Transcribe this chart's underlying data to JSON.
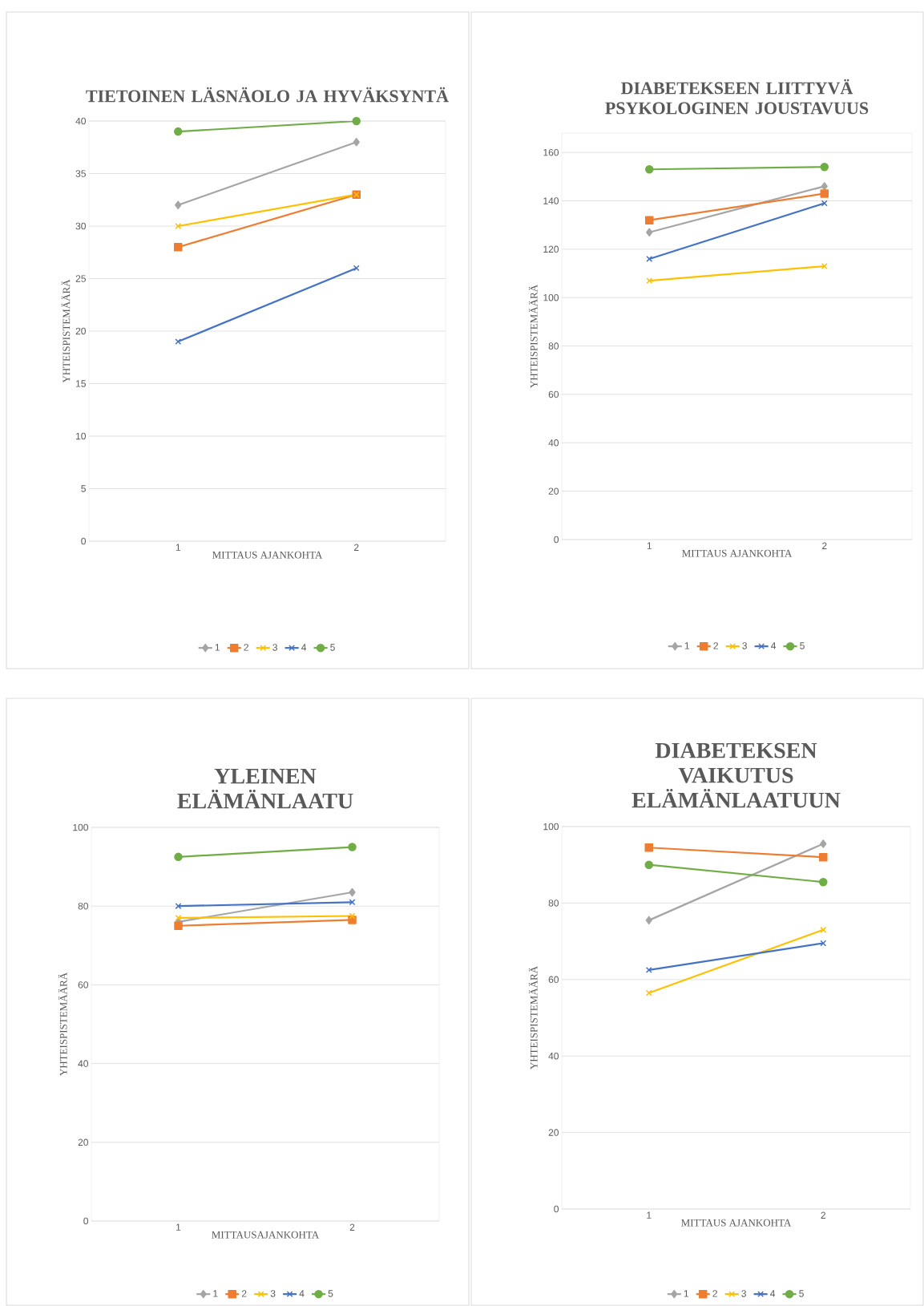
{
  "chart_data": [
    {
      "type": "line",
      "title": "TIETOINEN LÄSNÄOLO JA HYVÄKSYNTÄ",
      "xlabel": "MITTAUS AJANKOHTA",
      "ylabel": "YHTEISPISTEMÄÄRÄ",
      "categories": [
        "1",
        "2"
      ],
      "ylim": [
        0,
        40
      ],
      "yticks": [
        0,
        5,
        10,
        15,
        20,
        25,
        30,
        35,
        40
      ],
      "grid": "y",
      "legend": "bottom",
      "series": [
        {
          "name": "1",
          "color": "#a5a5a5",
          "marker": "diamond",
          "values": [
            32,
            38
          ]
        },
        {
          "name": "2",
          "color": "#ed7d31",
          "marker": "square",
          "values": [
            28,
            33
          ]
        },
        {
          "name": "3",
          "color": "#ffc000",
          "marker": "cross",
          "values": [
            30,
            33
          ]
        },
        {
          "name": "4",
          "color": "#4472c4",
          "marker": "cross",
          "values": [
            19,
            26
          ]
        },
        {
          "name": "5",
          "color": "#70ad47",
          "marker": "circle",
          "values": [
            39,
            40
          ]
        }
      ]
    },
    {
      "type": "line",
      "title": "DIABETEKSEEN LIITTYVÄ PSYKOLOGINEN JOUSTAVUUS",
      "xlabel": "MITTAUS AJANKOHTA",
      "ylabel": "YHTEISPISTEMÄÄRÄ",
      "categories": [
        "1",
        "2"
      ],
      "ylim": [
        0,
        168
      ],
      "yticks": [
        0,
        20,
        40,
        60,
        80,
        100,
        120,
        140,
        160
      ],
      "grid": "y",
      "legend": "bottom",
      "series": [
        {
          "name": "1",
          "color": "#a5a5a5",
          "marker": "diamond",
          "values": [
            127,
            146
          ]
        },
        {
          "name": "2",
          "color": "#ed7d31",
          "marker": "square",
          "values": [
            132,
            143
          ]
        },
        {
          "name": "3",
          "color": "#ffc000",
          "marker": "cross",
          "values": [
            107,
            113
          ]
        },
        {
          "name": "4",
          "color": "#4472c4",
          "marker": "cross",
          "values": [
            116,
            139
          ]
        },
        {
          "name": "5",
          "color": "#70ad47",
          "marker": "circle",
          "values": [
            153,
            154
          ]
        }
      ]
    },
    {
      "type": "line",
      "title": "YLEINEN ELÄMÄNLAATU",
      "xlabel": "MITTAUSAJANKOHTA",
      "ylabel": "YHTEISPISTEMÄÄRÄ",
      "categories": [
        "1",
        "2"
      ],
      "ylim": [
        0,
        100
      ],
      "yticks": [
        0,
        20,
        40,
        60,
        80,
        100
      ],
      "grid": "y",
      "legend": "bottom",
      "series": [
        {
          "name": "1",
          "color": "#a5a5a5",
          "marker": "diamond",
          "values": [
            76,
            83.5
          ]
        },
        {
          "name": "2",
          "color": "#ed7d31",
          "marker": "square",
          "values": [
            75,
            76.5
          ]
        },
        {
          "name": "3",
          "color": "#ffc000",
          "marker": "cross",
          "values": [
            77,
            77.5
          ]
        },
        {
          "name": "4",
          "color": "#4472c4",
          "marker": "cross",
          "values": [
            80,
            81
          ]
        },
        {
          "name": "5",
          "color": "#70ad47",
          "marker": "circle",
          "values": [
            92.5,
            95
          ]
        }
      ]
    },
    {
      "type": "line",
      "title": "DIABETEKSEN VAIKUTUS ELÄMÄNLAATUUN",
      "xlabel": "MITTAUS AJANKOHTA",
      "ylabel": "YHTEISPISTEMÄÄRÄ",
      "categories": [
        "1",
        "2"
      ],
      "ylim": [
        0,
        100
      ],
      "yticks": [
        0,
        20,
        40,
        60,
        80,
        100
      ],
      "grid": "y",
      "legend": "bottom",
      "series": [
        {
          "name": "1",
          "color": "#a5a5a5",
          "marker": "diamond",
          "values": [
            75.5,
            95.5
          ]
        },
        {
          "name": "2",
          "color": "#ed7d31",
          "marker": "square",
          "values": [
            94.5,
            92
          ]
        },
        {
          "name": "3",
          "color": "#ffc000",
          "marker": "cross",
          "values": [
            56.5,
            73
          ]
        },
        {
          "name": "4",
          "color": "#4472c4",
          "marker": "cross",
          "values": [
            62.5,
            69.5
          ]
        },
        {
          "name": "5",
          "color": "#70ad47",
          "marker": "circle",
          "values": [
            90,
            85.5
          ]
        }
      ]
    }
  ]
}
